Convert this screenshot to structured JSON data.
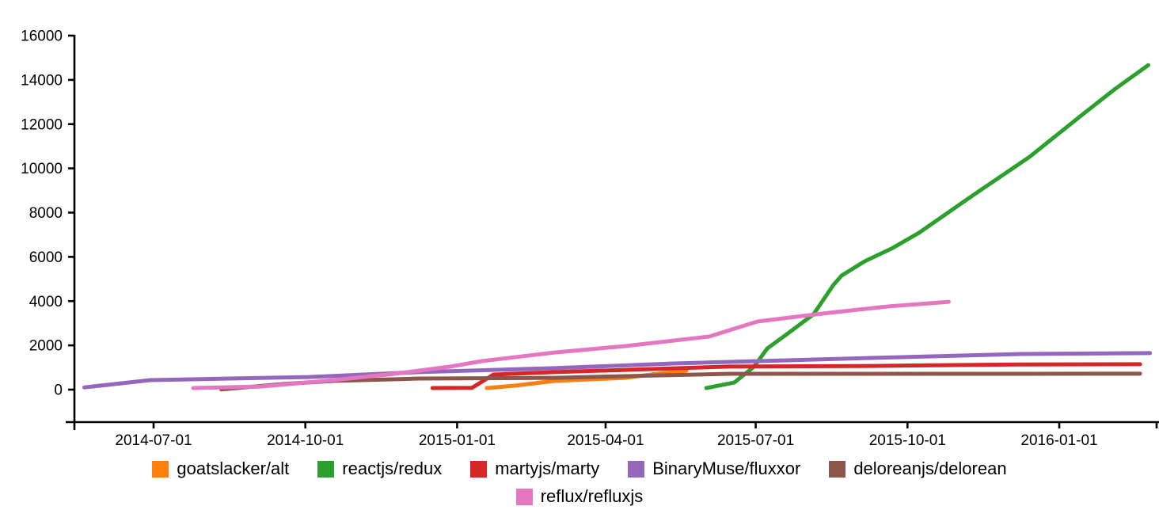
{
  "chart_data": {
    "type": "line",
    "title": "",
    "xlabel": "",
    "ylabel": "",
    "grid": false,
    "background_color": "#ffffff",
    "axis_color": "#000000",
    "legend_position": "bottom-center",
    "legend_rows": [
      [
        0,
        1,
        2,
        3,
        4
      ],
      [
        5
      ]
    ],
    "x_axis": {
      "tick_labels": [
        "2014-07-01",
        "2014-10-01",
        "2015-01-01",
        "2015-04-01",
        "2015-07-01",
        "2015-10-01",
        "2016-01-01"
      ],
      "range_dates": [
        "2014-05-15",
        "2016-03-05"
      ]
    },
    "y_axis": {
      "tick_labels": [
        "0",
        "2000",
        "4000",
        "6000",
        "8000",
        "10000",
        "12000",
        "14000",
        "16000"
      ],
      "tick_values": [
        0,
        2000,
        4000,
        6000,
        8000,
        10000,
        12000,
        14000,
        16000
      ],
      "ylim": [
        0,
        16000
      ]
    },
    "series": [
      {
        "name": "goatslacker/alt",
        "color": "#ff7f0e",
        "points": [
          [
            "2015-01-19",
            70
          ],
          [
            "2015-02-05",
            180
          ],
          [
            "2015-03-01",
            395
          ],
          [
            "2015-04-13",
            535
          ],
          [
            "2015-05-02",
            715
          ],
          [
            "2015-05-20",
            860
          ]
        ]
      },
      {
        "name": "reactjs/redux",
        "color": "#2ca02c",
        "points": [
          [
            "2015-06-01",
            70
          ],
          [
            "2015-06-18",
            320
          ],
          [
            "2015-06-30",
            1040
          ],
          [
            "2015-07-08",
            1860
          ],
          [
            "2015-07-18",
            2400
          ],
          [
            "2015-07-23",
            2680
          ],
          [
            "2015-08-05",
            3400
          ],
          [
            "2015-08-17",
            4720
          ],
          [
            "2015-08-22",
            5150
          ],
          [
            "2015-09-05",
            5800
          ],
          [
            "2015-09-22",
            6400
          ],
          [
            "2015-10-08",
            7090
          ],
          [
            "2015-11-10",
            8800
          ],
          [
            "2015-12-14",
            10520
          ],
          [
            "2016-01-16",
            12490
          ],
          [
            "2016-02-04",
            13600
          ],
          [
            "2016-02-24",
            14670
          ]
        ]
      },
      {
        "name": "martyjs/marty",
        "color": "#d62728",
        "points": [
          [
            "2014-12-17",
            70
          ],
          [
            "2015-01-10",
            80
          ],
          [
            "2015-01-23",
            680
          ],
          [
            "2015-03-01",
            790
          ],
          [
            "2015-06-15",
            1040
          ],
          [
            "2015-09-09",
            1070
          ],
          [
            "2015-12-09",
            1140
          ],
          [
            "2016-02-19",
            1150
          ]
        ]
      },
      {
        "name": "BinaryMuse/fluxxor",
        "color": "#9467bd",
        "points": [
          [
            "2014-05-20",
            100
          ],
          [
            "2014-06-29",
            430
          ],
          [
            "2014-08-16",
            500
          ],
          [
            "2014-10-03",
            570
          ],
          [
            "2014-12-09",
            790
          ],
          [
            "2015-03-01",
            970
          ],
          [
            "2015-05-12",
            1180
          ],
          [
            "2015-09-09",
            1430
          ],
          [
            "2015-12-09",
            1610
          ],
          [
            "2016-02-25",
            1650
          ]
        ]
      },
      {
        "name": "deloreanjs/delorean",
        "color": "#8c564b",
        "points": [
          [
            "2014-08-11",
            10
          ],
          [
            "2014-09-17",
            250
          ],
          [
            "2014-10-18",
            395
          ],
          [
            "2014-12-09",
            500
          ],
          [
            "2015-03-01",
            535
          ],
          [
            "2015-06-15",
            715
          ],
          [
            "2015-12-09",
            715
          ],
          [
            "2016-02-19",
            720
          ]
        ]
      },
      {
        "name": "reflux/refluxjs",
        "color": "#e377c2",
        "points": [
          [
            "2014-07-25",
            70
          ],
          [
            "2014-09-04",
            140
          ],
          [
            "2014-10-18",
            430
          ],
          [
            "2014-11-24",
            715
          ],
          [
            "2014-12-09",
            860
          ],
          [
            "2014-12-28",
            1040
          ],
          [
            "2015-01-16",
            1290
          ],
          [
            "2015-03-01",
            1680
          ],
          [
            "2015-04-13",
            1970
          ],
          [
            "2015-06-03",
            2400
          ],
          [
            "2015-07-02",
            3080
          ],
          [
            "2015-08-14",
            3470
          ],
          [
            "2015-09-19",
            3760
          ],
          [
            "2015-10-26",
            3970
          ]
        ]
      }
    ]
  }
}
